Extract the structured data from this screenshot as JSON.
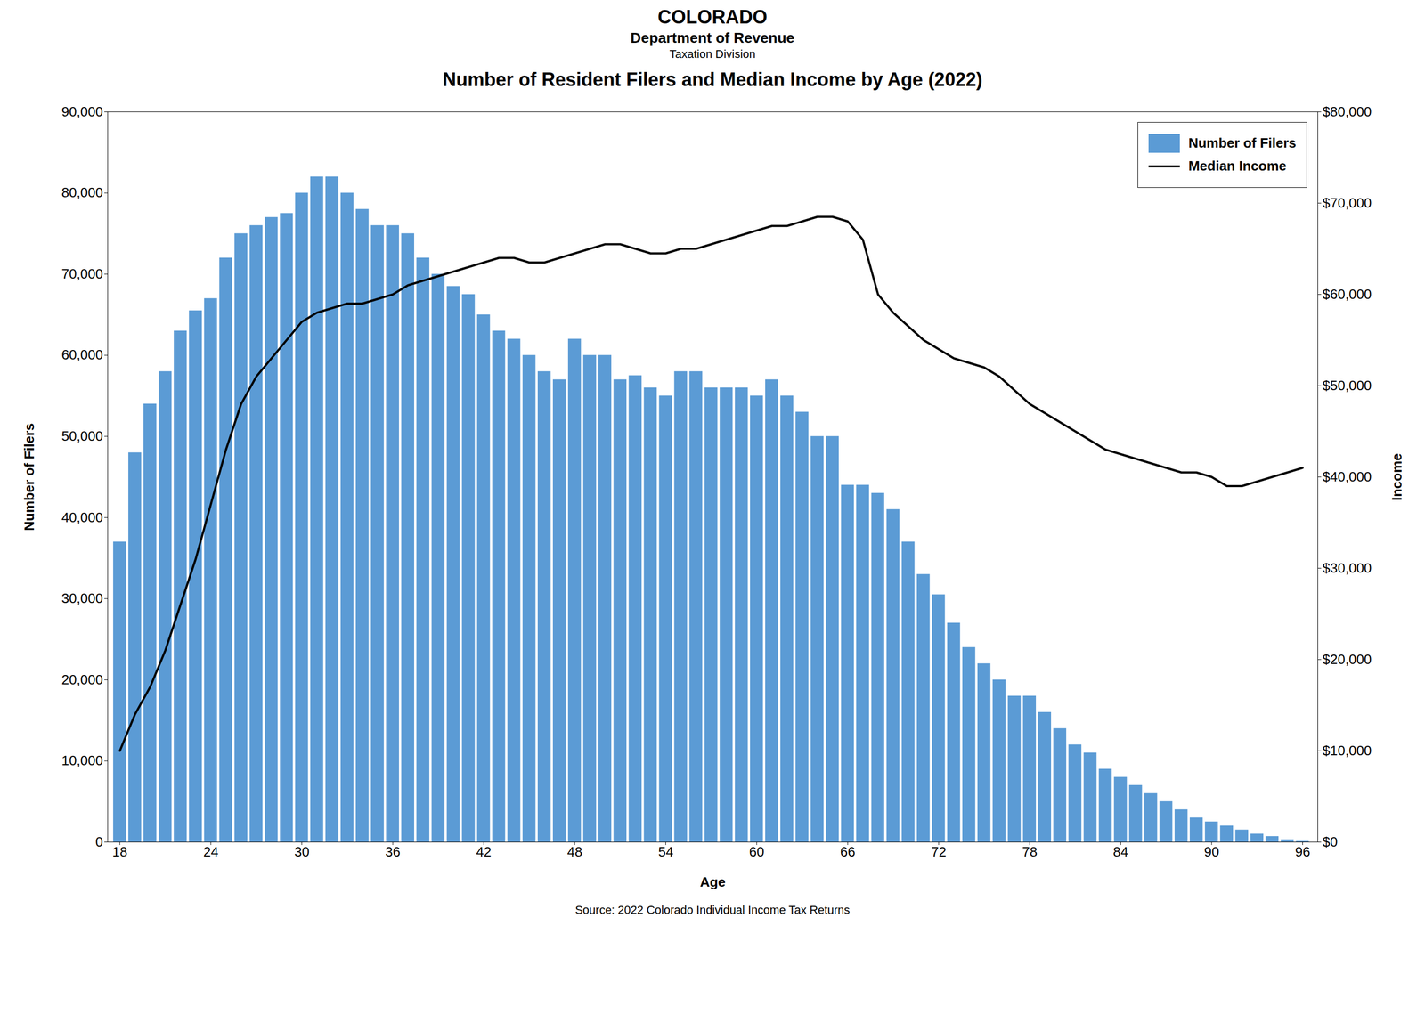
{
  "chart_data": {
    "type": "bar",
    "title": "Number of Resident Filers and Median Income by Age (2022)",
    "annotations": [
      "COLORADO",
      "Department of Revenue",
      "Taxation Division",
      "Source: 2022 Colorado Individual Income Tax Returns"
    ],
    "xlabel": "Age",
    "ylabel": "Number of Filers",
    "y2label": "Income",
    "x": [
      18,
      19,
      20,
      21,
      22,
      23,
      24,
      25,
      26,
      27,
      28,
      29,
      30,
      31,
      32,
      33,
      34,
      35,
      36,
      37,
      38,
      39,
      40,
      41,
      42,
      43,
      44,
      45,
      46,
      47,
      48,
      49,
      50,
      51,
      52,
      53,
      54,
      55,
      56,
      57,
      58,
      59,
      60,
      61,
      62,
      63,
      64,
      65,
      66,
      67,
      68,
      69,
      70,
      71,
      72,
      73,
      74,
      75,
      76,
      77,
      78,
      79,
      80,
      81,
      82,
      83,
      84,
      85,
      86,
      87,
      88,
      89,
      90,
      91,
      92,
      93,
      94,
      95,
      96
    ],
    "series": [
      {
        "name": "Number of Filers",
        "type": "bar",
        "color": "#5B9BD5",
        "values": [
          37000,
          48000,
          54000,
          58000,
          63000,
          65500,
          67000,
          72000,
          75000,
          76000,
          77000,
          77500,
          80000,
          82000,
          82000,
          80000,
          78000,
          76000,
          76000,
          75000,
          72000,
          70000,
          68500,
          67500,
          65000,
          63000,
          62000,
          60000,
          58000,
          57000,
          62000,
          60000,
          60000,
          57000,
          57500,
          56000,
          55000,
          58000,
          58000,
          56000,
          56000,
          56000,
          55000,
          57000,
          55000,
          53000,
          50000,
          50000,
          44000,
          44000,
          43000,
          41000,
          37000,
          33000,
          30500,
          27000,
          24000,
          22000,
          20000,
          18000,
          18000,
          16000,
          14000,
          12000,
          11000,
          9000,
          8000,
          7000,
          6000,
          5000,
          4000,
          3000,
          2500,
          2000,
          1500,
          1000,
          700,
          300,
          100
        ]
      },
      {
        "name": "Median Income",
        "type": "line",
        "color": "#000000",
        "axis": "y2",
        "values": [
          10000,
          14000,
          17000,
          21000,
          26000,
          31000,
          37000,
          43000,
          48000,
          51000,
          53000,
          55000,
          57000,
          58000,
          58500,
          59000,
          59000,
          59500,
          60000,
          61000,
          61500,
          62000,
          62500,
          63000,
          63500,
          64000,
          64000,
          63500,
          63500,
          64000,
          64500,
          65000,
          65500,
          65500,
          65000,
          64500,
          64500,
          65000,
          65000,
          65500,
          66000,
          66500,
          67000,
          67500,
          67500,
          68000,
          68500,
          68500,
          68000,
          66000,
          60000,
          58000,
          56500,
          55000,
          54000,
          53000,
          52500,
          52000,
          51000,
          49500,
          48000,
          47000,
          46000,
          45000,
          44000,
          43000,
          42500,
          42000,
          41500,
          41000,
          40500,
          40500,
          40000,
          39000,
          39000,
          39500,
          40000,
          40500,
          41000
        ]
      }
    ],
    "xlim": [
      17.2,
      97
    ],
    "xticks": [
      18,
      24,
      30,
      36,
      42,
      48,
      54,
      60,
      66,
      72,
      78,
      84,
      90,
      96
    ],
    "ylim": [
      0,
      90000
    ],
    "yticks": [
      0,
      {
        "value": 10000,
        "label": "10,000"
      },
      {
        "value": 20000,
        "label": "20,000"
      },
      {
        "value": 30000,
        "label": "30,000"
      },
      {
        "value": 40000,
        "label": "40,000"
      },
      {
        "value": 50000,
        "label": "50,000"
      },
      {
        "value": 60000,
        "label": "60,000"
      },
      {
        "value": 70000,
        "label": "70,000"
      },
      {
        "value": 80000,
        "label": "80,000"
      },
      {
        "value": 90000,
        "label": "90,000"
      }
    ],
    "y2lim": [
      0,
      80000
    ],
    "y2ticks": [
      {
        "value": 0,
        "label": "$0"
      },
      {
        "value": 10000,
        "label": "$10,000"
      },
      {
        "value": 20000,
        "label": "$20,000"
      },
      {
        "value": 30000,
        "label": "$30,000"
      },
      {
        "value": 40000,
        "label": "$40,000"
      },
      {
        "value": 50000,
        "label": "$50,000"
      },
      {
        "value": 60000,
        "label": "$60,000"
      },
      {
        "value": 70000,
        "label": "$70,000"
      },
      {
        "value": 80000,
        "label": "$80,000"
      }
    ],
    "grid": false,
    "legend": "upper right"
  }
}
